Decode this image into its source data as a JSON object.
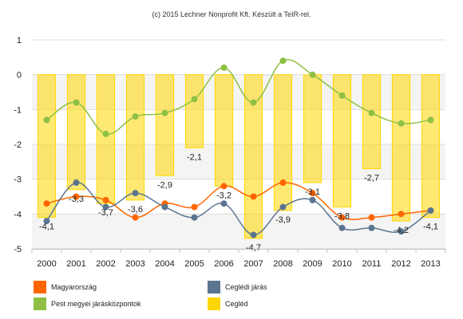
{
  "credit": "(c) 2015 Lechner Nonprofit Kft. Készült a TeIR-rel.",
  "chart_data": {
    "type": "bar",
    "categories": [
      "2000",
      "2001",
      "2002",
      "2003",
      "2004",
      "2005",
      "2006",
      "2007",
      "2008",
      "2009",
      "2010",
      "2011",
      "2012",
      "2013"
    ],
    "ylim": [
      -5,
      1
    ],
    "yticks": [
      "1",
      "0",
      "-1",
      "-2",
      "-3",
      "-4",
      "-5"
    ],
    "ytick_values": [
      1,
      0,
      -1,
      -2,
      -3,
      -4,
      -5
    ],
    "series": [
      {
        "name": "Cegléd",
        "kind": "bar",
        "color": "#ffd700",
        "values": [
          -4.1,
          -3.3,
          -3.7,
          -3.6,
          -2.9,
          -2.1,
          -3.2,
          -4.7,
          -3.9,
          -3.1,
          -3.8,
          -2.7,
          -4.2,
          -4.1
        ],
        "labels": [
          "-4,1",
          "-3,3",
          "-3,7",
          "-3,6",
          "-2,9",
          "-2,1",
          "-3,2",
          "-4,7",
          "-3,9",
          "-3,1",
          "-3,8",
          "-2,7",
          "-4,2",
          "-4,1"
        ]
      },
      {
        "name": "Pest megyei járásközpontok",
        "kind": "line",
        "color": "#8dc044",
        "values": [
          -1.3,
          -0.8,
          -1.7,
          -1.2,
          -1.1,
          -0.7,
          0.2,
          -0.8,
          0.4,
          0.0,
          -0.6,
          -1.1,
          -1.4,
          -1.3
        ]
      },
      {
        "name": "Magyarország",
        "kind": "line",
        "color": "#ff6600",
        "values": [
          -3.7,
          -3.5,
          -3.6,
          -4.1,
          -3.7,
          -3.8,
          -3.2,
          -3.5,
          -3.1,
          -3.4,
          -4.1,
          -4.1,
          -4.0,
          -3.9
        ]
      },
      {
        "name": "Ceglédi járás",
        "kind": "line",
        "color": "#5b7590",
        "values": [
          -4.2,
          -3.1,
          -3.8,
          -3.4,
          -3.8,
          -4.1,
          -3.7,
          -4.6,
          -3.8,
          -3.6,
          -4.4,
          -4.4,
          -4.5,
          -3.9
        ]
      }
    ]
  },
  "legend": [
    {
      "name": "Magyarország",
      "color": "#ff6600"
    },
    {
      "name": "Ceglédi járás",
      "color": "#5b7590"
    },
    {
      "name": "Pest megyei járásközpontok",
      "color": "#8dc044"
    },
    {
      "name": "Cegléd",
      "color": "#ffd700"
    }
  ]
}
